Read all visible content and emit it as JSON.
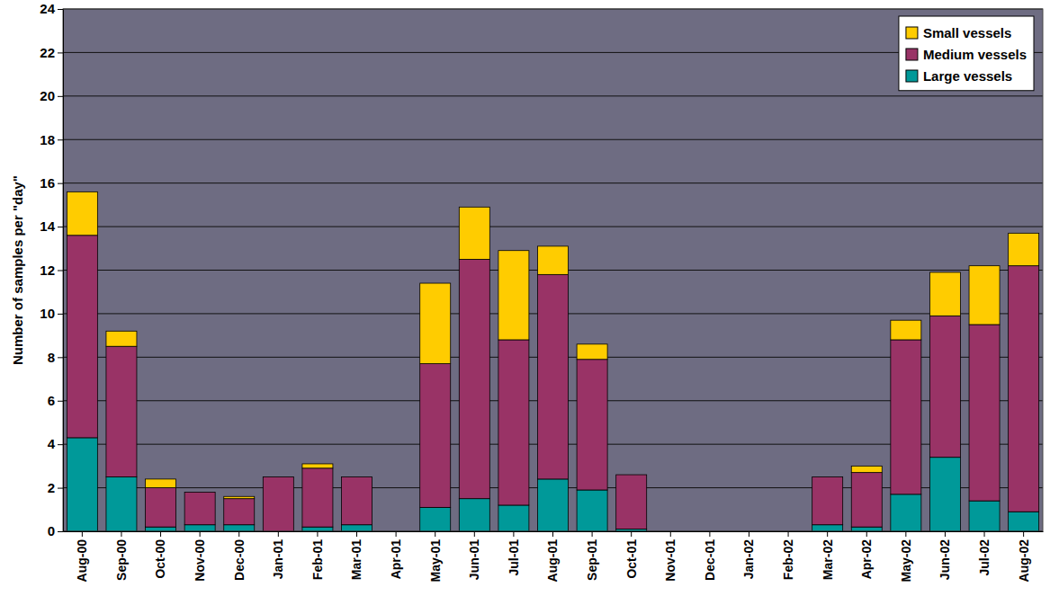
{
  "chart_data": {
    "type": "bar",
    "stacked": true,
    "grid": true,
    "legend": "top-right",
    "y_label": "Number of samples per \"day\"",
    "categories": [
      "Aug-00",
      "Sep-00",
      "Oct-00",
      "Nov-00",
      "Dec-00",
      "Jan-01",
      "Feb-01",
      "Mar-01",
      "Apr-01",
      "May-01",
      "Jun-01",
      "Jul-01",
      "Aug-01",
      "Sep-01",
      "Oct-01",
      "Nov-01",
      "Dec-01",
      "Jan-02",
      "Feb-02",
      "Mar-02",
      "Apr-02",
      "May-02",
      "Jun-02",
      "Jul-02",
      "Aug-02"
    ],
    "series": [
      {
        "name": "Small vessels",
        "color": "#ffcc00",
        "values": [
          2.0,
          0.7,
          0.4,
          0,
          0.1,
          0,
          0.2,
          0,
          0,
          3.7,
          2.4,
          4.1,
          1.3,
          0.7,
          0,
          0,
          0,
          0,
          0,
          0,
          0.3,
          0.9,
          2.0,
          2.7,
          1.5
        ]
      },
      {
        "name": "Medium vessels",
        "color": "#993366",
        "values": [
          9.3,
          6.0,
          1.8,
          1.5,
          1.2,
          2.5,
          2.7,
          2.2,
          0,
          6.6,
          11.0,
          7.6,
          9.4,
          6.0,
          2.5,
          0,
          0,
          0,
          0,
          2.2,
          2.5,
          7.1,
          6.5,
          8.1,
          11.3
        ]
      },
      {
        "name": "Large vessels",
        "color": "#009999",
        "values": [
          4.3,
          2.5,
          0.2,
          0.3,
          0.3,
          0,
          0.2,
          0.3,
          0,
          1.1,
          1.5,
          1.2,
          2.4,
          1.9,
          0.1,
          0,
          0,
          0,
          0,
          0.3,
          0.2,
          1.7,
          3.4,
          1.4,
          0.9
        ]
      }
    ],
    "ylim": [
      0,
      24
    ],
    "yticks": [
      0,
      2,
      4,
      6,
      8,
      10,
      12,
      14,
      16,
      18,
      20,
      22,
      24
    ]
  }
}
